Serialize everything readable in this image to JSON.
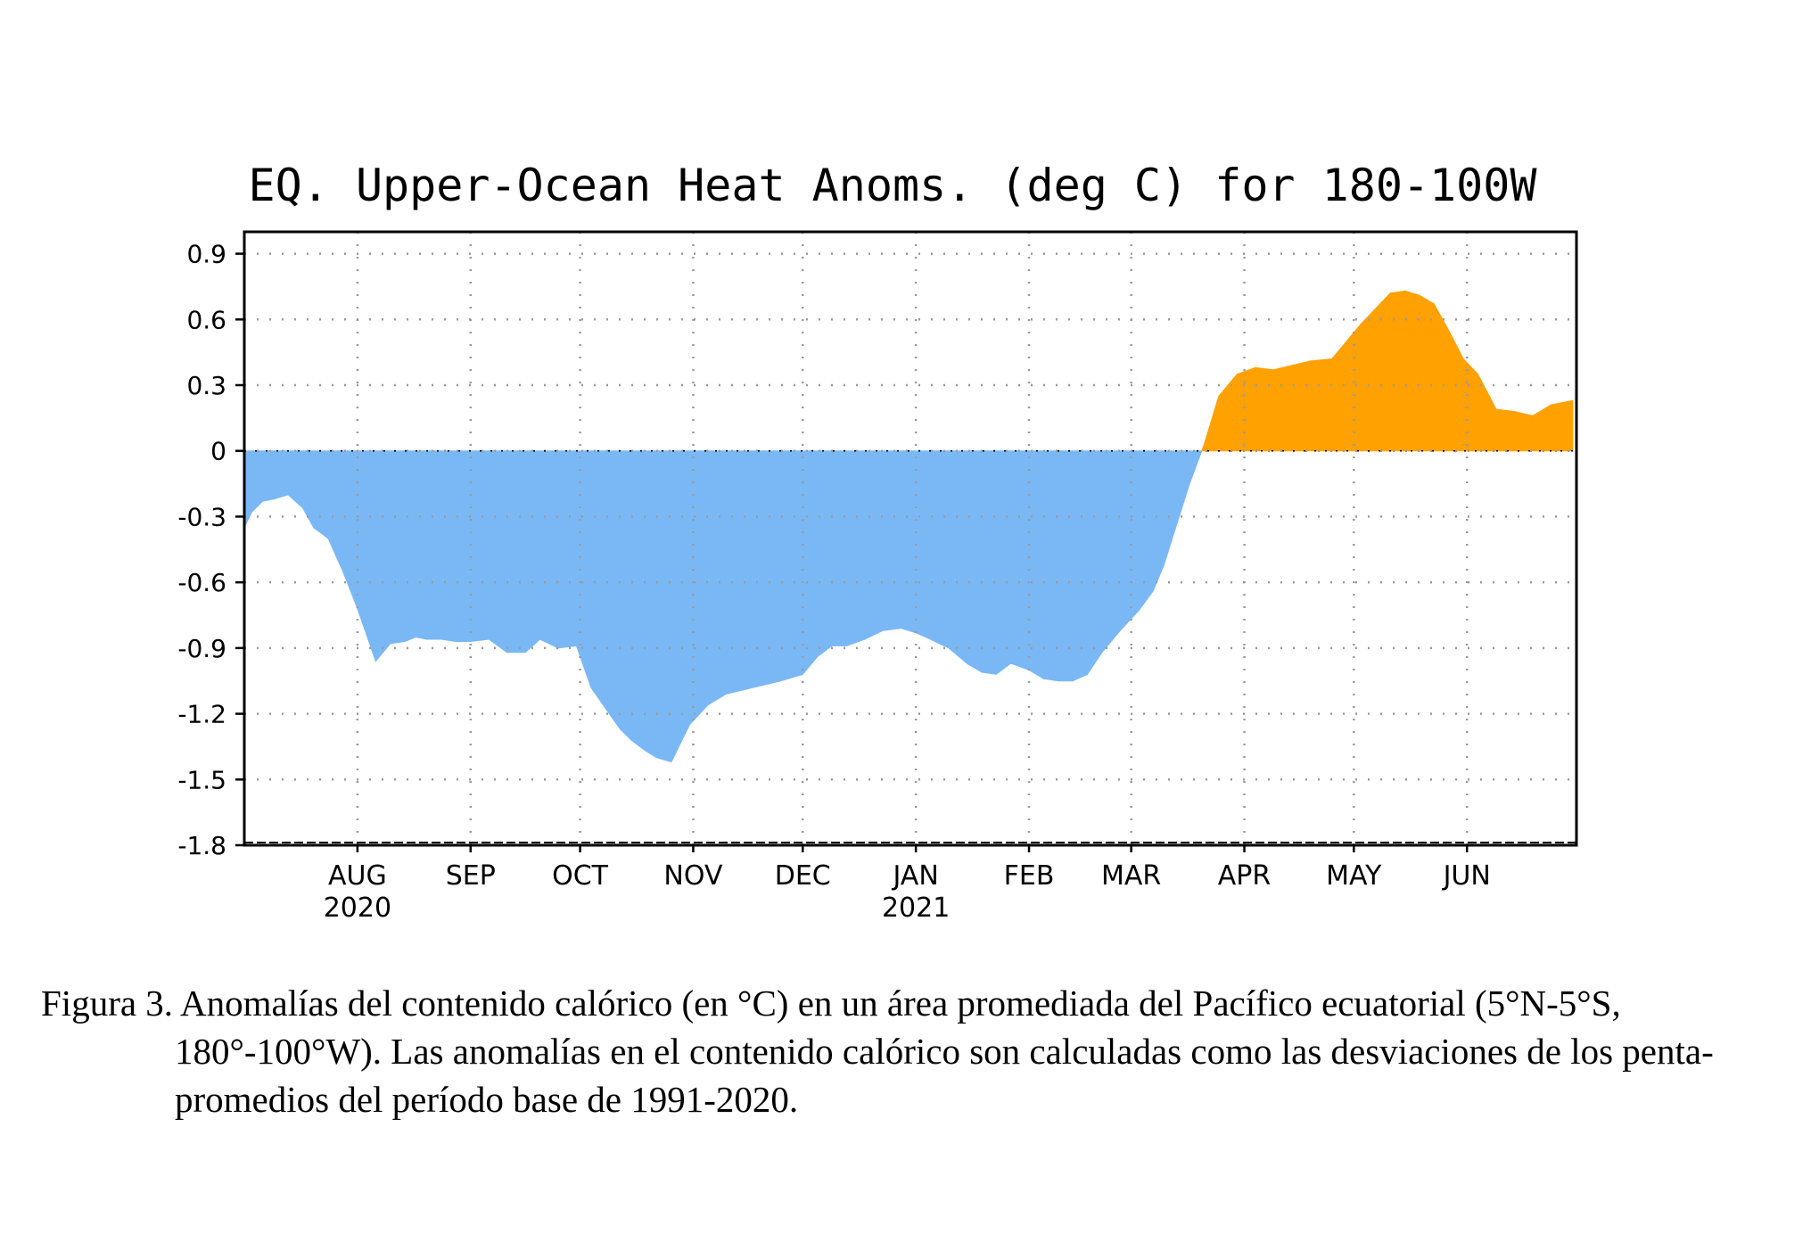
{
  "chart_data": {
    "type": "area",
    "title": "EQ. Upper-Ocean Heat Anoms. (deg C) for 180-100W",
    "xlabel": "",
    "ylabel": "",
    "ylim": [
      -1.8,
      1.0
    ],
    "yticks": [
      "0.9",
      "0.6",
      "0.3",
      "0",
      "-0.3",
      "-0.6",
      "-0.9",
      "-1.2",
      "-1.5",
      "-1.8"
    ],
    "xticks": [
      {
        "month": "AUG",
        "year": "2020"
      },
      {
        "month": "SEP",
        "year": ""
      },
      {
        "month": "OCT",
        "year": ""
      },
      {
        "month": "NOV",
        "year": ""
      },
      {
        "month": "DEC",
        "year": ""
      },
      {
        "month": "JAN",
        "year": "2021"
      },
      {
        "month": "FEB",
        "year": ""
      },
      {
        "month": "MAR",
        "year": ""
      },
      {
        "month": "APR",
        "year": ""
      },
      {
        "month": "MAY",
        "year": ""
      },
      {
        "month": "JUN",
        "year": ""
      }
    ],
    "grid": true,
    "x": [
      "2020-07-01",
      "2020-07-03",
      "2020-07-06",
      "2020-07-09",
      "2020-07-13",
      "2020-07-17",
      "2020-07-20",
      "2020-07-24",
      "2020-07-28",
      "2020-08-01",
      "2020-08-06",
      "2020-08-10",
      "2020-08-14",
      "2020-08-17",
      "2020-08-20",
      "2020-08-24",
      "2020-08-28",
      "2020-09-01",
      "2020-09-06",
      "2020-09-11",
      "2020-09-16",
      "2020-09-20",
      "2020-09-25",
      "2020-09-30",
      "2020-10-04",
      "2020-10-09",
      "2020-10-12",
      "2020-10-15",
      "2020-10-19",
      "2020-10-22",
      "2020-10-26",
      "2020-10-31",
      "2020-11-05",
      "2020-11-10",
      "2020-11-15",
      "2020-11-20",
      "2020-11-25",
      "2020-12-01",
      "2020-12-05",
      "2020-12-09",
      "2020-12-13",
      "2020-12-18",
      "2020-12-23",
      "2020-12-28",
      "2021-01-01",
      "2021-01-05",
      "2021-01-10",
      "2021-01-15",
      "2021-01-19",
      "2021-01-23",
      "2021-01-27",
      "2021-02-01",
      "2021-02-05",
      "2021-02-09",
      "2021-02-13",
      "2021-02-17",
      "2021-02-21",
      "2021-02-26",
      "2021-03-03",
      "2021-03-07",
      "2021-03-10",
      "2021-03-13",
      "2021-03-17",
      "2021-03-21",
      "2021-03-25",
      "2021-03-30",
      "2021-04-04",
      "2021-04-09",
      "2021-04-14",
      "2021-04-19",
      "2021-04-25",
      "2021-04-29",
      "2021-05-03",
      "2021-05-07",
      "2021-05-11",
      "2021-05-15",
      "2021-05-19",
      "2021-05-23",
      "2021-05-27",
      "2021-05-31",
      "2021-06-04",
      "2021-06-09",
      "2021-06-14",
      "2021-06-19",
      "2021-06-24",
      "2021-06-30"
    ],
    "series": [
      {
        "values": [
          -0.35,
          -0.28,
          -0.23,
          -0.22,
          -0.2,
          -0.26,
          -0.35,
          -0.4,
          -0.55,
          -0.72,
          -0.96,
          -0.88,
          -0.87,
          -0.85,
          -0.86,
          -0.86,
          -0.87,
          -0.87,
          -0.86,
          -0.92,
          -0.92,
          -0.86,
          -0.9,
          -0.89,
          -1.08,
          -1.2,
          -1.27,
          -1.32,
          -1.37,
          -1.4,
          -1.42,
          -1.25,
          -1.16,
          -1.11,
          -1.09,
          -1.07,
          -1.05,
          -1.02,
          -0.94,
          -0.89,
          -0.89,
          -0.86,
          -0.82,
          -0.81,
          -0.83,
          -0.86,
          -0.9,
          -0.97,
          -1.01,
          -1.02,
          -0.97,
          -1.0,
          -1.04,
          -1.05,
          -1.05,
          -1.02,
          -0.92,
          -0.82,
          -0.73,
          -0.64,
          -0.52,
          -0.36,
          -0.15,
          0.03,
          0.25,
          0.35,
          0.38,
          0.37,
          0.39,
          0.41,
          0.42,
          0.5,
          0.58,
          0.65,
          0.72,
          0.73,
          0.71,
          0.67,
          0.55,
          0.42,
          0.35,
          0.19,
          0.18,
          0.16,
          0.21,
          0.23
        ],
        "positive_color": "#ffa100",
        "negative_color": "#7ab8f5"
      }
    ]
  },
  "caption": {
    "text": "Figura 3. Anomalías del contenido calórico (en °C) en un área promediada del Pacífico ecuatorial (5°N-5°S, 180°-100°W). Las anomalías en el contenido calórico son calculadas como las desviaciones de los penta-promedios del período base de 1991-2020."
  }
}
